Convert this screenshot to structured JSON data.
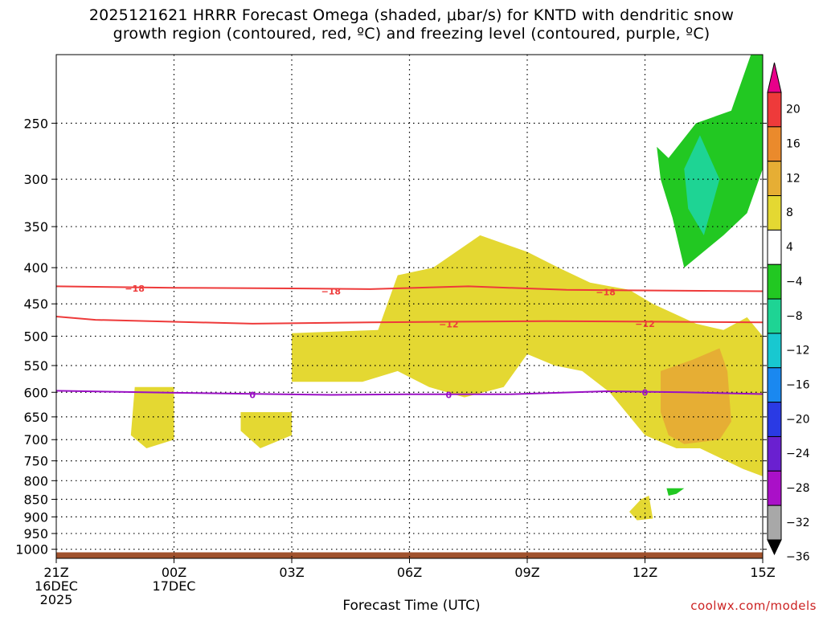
{
  "title_line1": "2025121621 HRRR Forecast Omega (shaded, μbar/s) for KNTD with dendritic snow",
  "title_line2": "growth region (contoured, red, ºC) and freezing level (contoured, purple, ºC)",
  "credit": "coolwx.com/models",
  "chart_data": {
    "type": "time-height contour",
    "xlabel": "Forecast Time (UTC)",
    "x_ticks": [
      {
        "hour": 0,
        "label": [
          "21Z",
          "16DEC",
          "2025"
        ]
      },
      {
        "hour": 3,
        "label": [
          "00Z",
          "17DEC"
        ]
      },
      {
        "hour": 6,
        "label": [
          "03Z"
        ]
      },
      {
        "hour": 9,
        "label": [
          "06Z"
        ]
      },
      {
        "hour": 12,
        "label": [
          "09Z"
        ]
      },
      {
        "hour": 15,
        "label": [
          "12Z"
        ]
      },
      {
        "hour": 18,
        "label": [
          "15Z"
        ]
      }
    ],
    "x_range_hours": [
      0,
      18
    ],
    "y_axis": "pressure (hPa), log scale",
    "y_ticks": [
      250,
      300,
      350,
      400,
      450,
      500,
      550,
      600,
      650,
      700,
      750,
      800,
      850,
      900,
      950,
      1000
    ],
    "y_range_hpa": [
      200,
      1030
    ],
    "colorbar": {
      "labels": [
        "20",
        "16",
        "12",
        "8",
        "4",
        "-4",
        "-8",
        "-12",
        "-16",
        "-20",
        "-24",
        "-28",
        "-32",
        "-36"
      ],
      "colors": [
        "#e8008a",
        "#ee3a3a",
        "#ea8a2c",
        "#e6ae34",
        "#e4d832",
        "#ffffff",
        "#22c822",
        "#1ed494",
        "#18c8d0",
        "#1a88f0",
        "#2a3ae4",
        "#6a20d0",
        "#aa10c8",
        "#a8a8a8",
        "#000000"
      ]
    },
    "shaded_regions": [
      {
        "name": "yellow-left",
        "omega": "4 to 8",
        "color": "#e4d832",
        "points": [
          [
            2.0,
            590
          ],
          [
            3.0,
            590
          ],
          [
            3.0,
            700
          ],
          [
            2.3,
            720
          ],
          [
            1.9,
            690
          ]
        ]
      },
      {
        "name": "yellow-mid",
        "omega": "4 to 8",
        "color": "#e4d832",
        "points": [
          [
            4.7,
            640
          ],
          [
            6.0,
            640
          ],
          [
            6.0,
            690
          ],
          [
            5.2,
            720
          ],
          [
            4.7,
            680
          ]
        ]
      },
      {
        "name": "yellow-main",
        "omega": "4 to 8",
        "color": "#e4d832",
        "points": [
          [
            6.0,
            495
          ],
          [
            8.2,
            490
          ],
          [
            8.7,
            410
          ],
          [
            9.6,
            400
          ],
          [
            10.8,
            360
          ],
          [
            12.0,
            380
          ],
          [
            12.8,
            400
          ],
          [
            13.6,
            420
          ],
          [
            14.6,
            430
          ],
          [
            15.2,
            450
          ],
          [
            16.3,
            480
          ],
          [
            17.0,
            490
          ],
          [
            17.6,
            470
          ],
          [
            18.0,
            500
          ],
          [
            18.3,
            550
          ],
          [
            18.3,
            800
          ],
          [
            17.5,
            770
          ],
          [
            16.4,
            720
          ],
          [
            15.8,
            720
          ],
          [
            15.0,
            690
          ],
          [
            14.1,
            600
          ],
          [
            13.4,
            560
          ],
          [
            12.7,
            550
          ],
          [
            12.0,
            530
          ],
          [
            11.4,
            590
          ],
          [
            10.4,
            610
          ],
          [
            9.5,
            590
          ],
          [
            8.7,
            560
          ],
          [
            7.8,
            580
          ],
          [
            6.0,
            580
          ]
        ]
      },
      {
        "name": "yellow-small",
        "omega": "4 to 8",
        "color": "#e4d832",
        "points": [
          [
            14.9,
            850
          ],
          [
            15.1,
            840
          ],
          [
            15.2,
            905
          ],
          [
            14.8,
            910
          ],
          [
            14.6,
            885
          ]
        ]
      },
      {
        "name": "orange-core",
        "omega": "8 to 12",
        "color": "#e6ae34",
        "points": [
          [
            15.4,
            560
          ],
          [
            16.2,
            540
          ],
          [
            16.9,
            520
          ],
          [
            17.1,
            560
          ],
          [
            17.2,
            660
          ],
          [
            16.9,
            700
          ],
          [
            16.0,
            710
          ],
          [
            15.6,
            690
          ],
          [
            15.4,
            640
          ]
        ]
      },
      {
        "name": "green-upper",
        "omega": "-8 to -4",
        "color": "#22c822",
        "points": [
          [
            15.6,
            280
          ],
          [
            16.3,
            250
          ],
          [
            17.2,
            240
          ],
          [
            17.7,
            200
          ],
          [
            18.3,
            200
          ],
          [
            18.3,
            250
          ],
          [
            18.0,
            290
          ],
          [
            17.6,
            335
          ],
          [
            17.0,
            360
          ],
          [
            16.0,
            400
          ],
          [
            15.7,
            340
          ],
          [
            15.4,
            300
          ],
          [
            15.3,
            270
          ]
        ]
      },
      {
        "name": "teal-core",
        "omega": "-12 to -8",
        "color": "#1ed494",
        "points": [
          [
            16.0,
            290
          ],
          [
            16.4,
            260
          ],
          [
            16.9,
            300
          ],
          [
            16.5,
            360
          ],
          [
            16.1,
            330
          ]
        ]
      },
      {
        "name": "green-small",
        "omega": "-8 to -4",
        "color": "#22c822",
        "points": [
          [
            15.55,
            820
          ],
          [
            16.0,
            820
          ],
          [
            15.8,
            835
          ],
          [
            15.6,
            840
          ]
        ]
      }
    ],
    "contours": [
      {
        "name": "dgz-18",
        "value": -18,
        "color": "#ee3a3a",
        "points": [
          [
            0,
            425
          ],
          [
            3,
            427
          ],
          [
            6,
            428
          ],
          [
            8,
            429
          ],
          [
            10.5,
            425
          ],
          [
            13,
            430
          ],
          [
            18.3,
            432
          ]
        ],
        "labels": [
          [
            2.0,
            428
          ],
          [
            7.0,
            432
          ],
          [
            14.0,
            433
          ]
        ]
      },
      {
        "name": "dgz-12",
        "value": -12,
        "color": "#ee3a3a",
        "points": [
          [
            0,
            469
          ],
          [
            1,
            474
          ],
          [
            5,
            480
          ],
          [
            8,
            478
          ],
          [
            10,
            477
          ],
          [
            12.5,
            476
          ],
          [
            15.5,
            477
          ],
          [
            18.3,
            478
          ]
        ],
        "labels": [
          [
            10.0,
            481
          ],
          [
            15.0,
            480
          ]
        ]
      },
      {
        "name": "freezing-0",
        "value": 0,
        "color": "#9a10c4",
        "points": [
          [
            0,
            597
          ],
          [
            3,
            601
          ],
          [
            5,
            603
          ],
          [
            7,
            605
          ],
          [
            9,
            604
          ],
          [
            11.5,
            604
          ],
          [
            14,
            598
          ],
          [
            16,
            600
          ],
          [
            18.3,
            604
          ]
        ],
        "labels": [
          [
            5.0,
            605
          ],
          [
            10.0,
            605
          ],
          [
            15.0,
            600
          ]
        ]
      }
    ],
    "terrain": {
      "color": "#a0522d",
      "pressure_hpa": 1010
    }
  }
}
